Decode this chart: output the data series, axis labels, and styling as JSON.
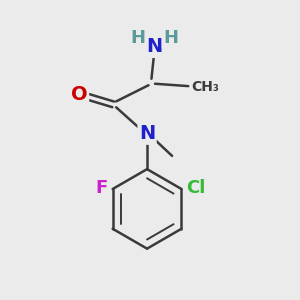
{
  "bg_color": "#ebebeb",
  "atom_colors": {
    "C": "#3a3a3a",
    "N": "#2020cc",
    "O": "#cc0000",
    "F": "#cc22cc",
    "Cl": "#33bb33",
    "H": "#5a9a9a"
  },
  "bond_color": "#3a3a3a",
  "bond_width": 1.8,
  "font_size_atom": 13,
  "font_size_small": 10
}
